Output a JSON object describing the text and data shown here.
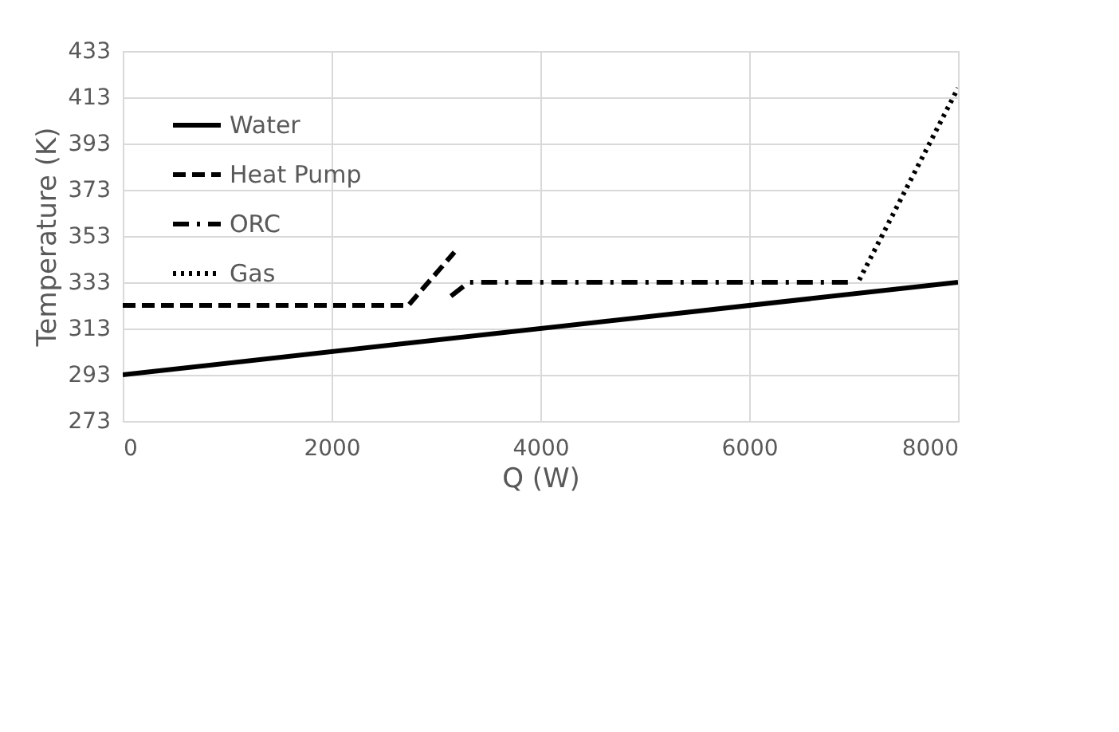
{
  "chart_data": {
    "type": "line",
    "xlabel": "Q (W)",
    "ylabel": "Temperature (K)",
    "xlim": [
      0,
      8000
    ],
    "xticks": [
      0,
      2000,
      4000,
      6000,
      8000
    ],
    "ylim": [
      273,
      433
    ],
    "yticks": [
      273,
      293,
      313,
      333,
      353,
      373,
      393,
      413,
      433
    ],
    "grid": true,
    "legend": "top left",
    "marker": "none",
    "series": [
      {
        "name": "Water",
        "color": "#000000",
        "line_style": "solid",
        "x": [
          0,
          8000
        ],
        "values": [
          293,
          333
        ]
      },
      {
        "name": "Heat Pump",
        "color": "#000000",
        "line_style": "dashed",
        "x": [
          0,
          2735,
          3177
        ],
        "values": [
          323,
          323,
          346
        ]
      },
      {
        "name": "ORC",
        "color": "#000000",
        "line_style": "dashdot",
        "x": [
          3143,
          3315,
          7008
        ],
        "values": [
          327,
          333,
          333
        ]
      },
      {
        "name": "Gas",
        "color": "#000000",
        "line_style": "dotted",
        "x": [
          7054,
          8000
        ],
        "values": [
          334,
          417
        ]
      }
    ]
  }
}
